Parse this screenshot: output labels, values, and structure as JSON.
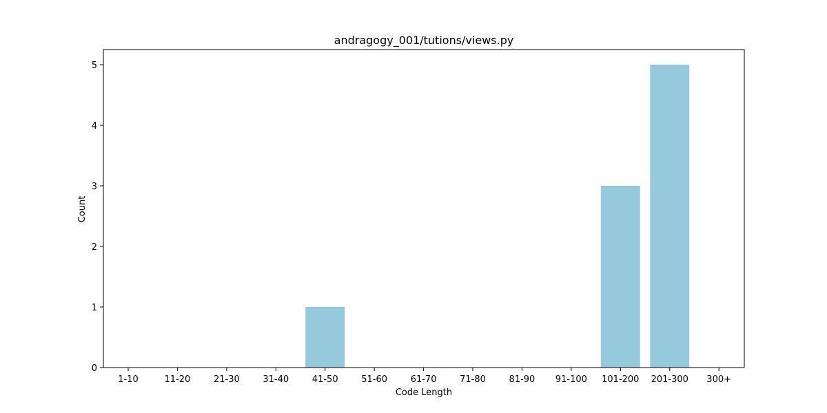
{
  "chart_data": {
    "type": "bar",
    "title": "andragogy_001/tutions/views.py",
    "xlabel": "Code Length",
    "ylabel": "Count",
    "categories": [
      "1-10",
      "11-20",
      "21-30",
      "31-40",
      "41-50",
      "51-60",
      "61-70",
      "71-80",
      "81-90",
      "91-100",
      "101-200",
      "201-300",
      "300+"
    ],
    "values": [
      0,
      0,
      0,
      0,
      1,
      0,
      0,
      0,
      0,
      0,
      3,
      5,
      0
    ],
    "ylim": [
      0,
      5.25
    ],
    "yticks": [
      0,
      1,
      2,
      3,
      4,
      5
    ],
    "grid": false,
    "bar_color": "#96c9dc"
  }
}
